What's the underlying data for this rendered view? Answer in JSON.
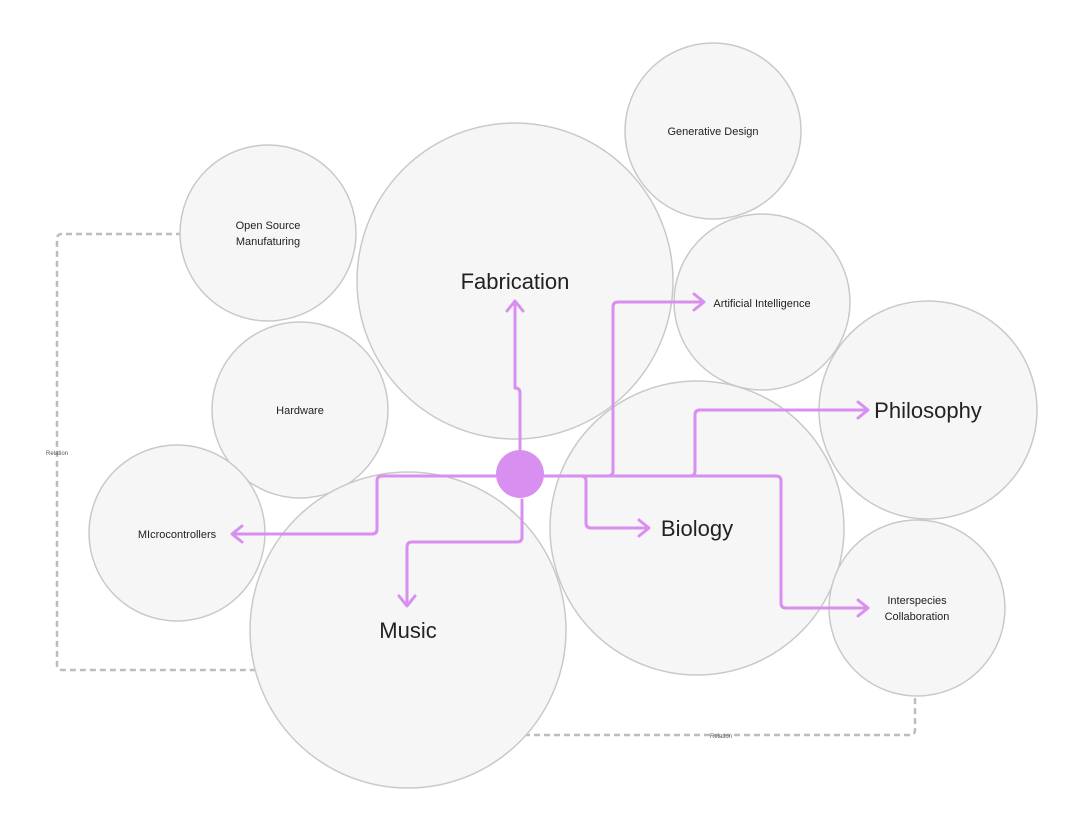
{
  "diagram": {
    "nodes": {
      "generative_design": "Generative Design",
      "open_source_line1": "Open Source",
      "open_source_line2": "Manufaturing",
      "fabrication": "Fabrication",
      "artificial_intelligence": "Artificial Intelligence",
      "hardware": "Hardware",
      "philosophy": "Philosophy",
      "microcontrollers": "MIcrocontrollers",
      "biology": "Biology",
      "interspecies_line1": "Interspecies",
      "interspecies_line2": "Collaboration",
      "music": "Music"
    },
    "relations": {
      "left": "Relation",
      "bottom": "Relation"
    },
    "colors": {
      "flow": "#d98ff0",
      "hub": "#d98ff0",
      "bubble_fill": "#f6f6f6",
      "bubble_stroke": "#c9c9c9",
      "relation": "#bdbdbd"
    }
  }
}
